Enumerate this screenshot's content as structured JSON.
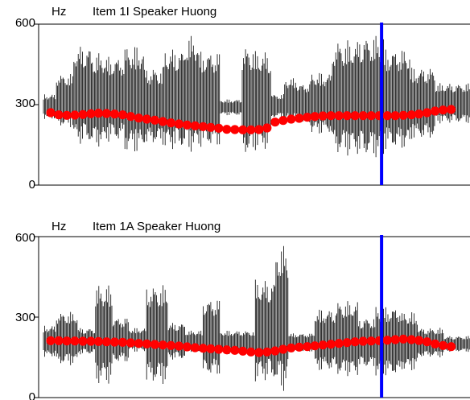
{
  "colors": {
    "waveform": "#000000",
    "pitch_points": "#ff0000",
    "cursor": "#0000ff",
    "axis": "#000000",
    "background": "#ffffff"
  },
  "chart_data": [
    {
      "type": "scatter",
      "title": "Item 1I Speaker Huong",
      "ylabel": "Hz",
      "ylim": [
        0,
        600
      ],
      "yticks": [
        "0",
        "300",
        "600"
      ],
      "grid": false,
      "legend": "none",
      "cursor_x_fraction": 0.795,
      "x": [
        0.0,
        0.019,
        0.038,
        0.057,
        0.076,
        0.095,
        0.113,
        0.132,
        0.151,
        0.17,
        0.189,
        0.208,
        0.227,
        0.246,
        0.265,
        0.284,
        0.303,
        0.322,
        0.341,
        0.36,
        0.378,
        0.397,
        0.416,
        0.435,
        0.454,
        0.473,
        0.492,
        0.511,
        0.53,
        0.549,
        0.568,
        0.587,
        0.606,
        0.624,
        0.643,
        0.662,
        0.681,
        0.7,
        0.719,
        0.738,
        0.757,
        0.776,
        0.795,
        0.814,
        0.833,
        0.852,
        0.87,
        0.889,
        0.908,
        0.927,
        0.946
      ],
      "pitch_hz": [
        270,
        262,
        260,
        261,
        263,
        266,
        268,
        267,
        265,
        262,
        256,
        250,
        246,
        242,
        237,
        232,
        228,
        224,
        221,
        218,
        215,
        212,
        208,
        207,
        206,
        206,
        207,
        213,
        235,
        241,
        246,
        249,
        253,
        256,
        258,
        259,
        259,
        259,
        259,
        259,
        259,
        259,
        259,
        259,
        260,
        262,
        265,
        270,
        276,
        280,
        282
      ],
      "waveform_envelope": [
        {
          "from": 0.0,
          "to": 0.04,
          "up": 340,
          "down": 245
        },
        {
          "from": 0.04,
          "to": 0.08,
          "up": 415,
          "down": 215
        },
        {
          "from": 0.08,
          "to": 0.12,
          "up": 520,
          "down": 150
        },
        {
          "from": 0.12,
          "to": 0.155,
          "up": 495,
          "down": 140
        },
        {
          "from": 0.155,
          "to": 0.2,
          "up": 480,
          "down": 160
        },
        {
          "from": 0.2,
          "to": 0.245,
          "up": 520,
          "down": 120
        },
        {
          "from": 0.245,
          "to": 0.29,
          "up": 440,
          "down": 150
        },
        {
          "from": 0.29,
          "to": 0.34,
          "up": 510,
          "down": 130
        },
        {
          "from": 0.34,
          "to": 0.37,
          "up": 560,
          "down": 120
        },
        {
          "from": 0.37,
          "to": 0.42,
          "up": 500,
          "down": 140
        },
        {
          "from": 0.42,
          "to": 0.47,
          "up": 320,
          "down": 260
        },
        {
          "from": 0.47,
          "to": 0.5,
          "up": 520,
          "down": 110
        },
        {
          "from": 0.5,
          "to": 0.54,
          "up": 500,
          "down": 130
        },
        {
          "from": 0.54,
          "to": 0.57,
          "up": 340,
          "down": 250
        },
        {
          "from": 0.57,
          "to": 0.6,
          "up": 400,
          "down": 230
        },
        {
          "from": 0.6,
          "to": 0.63,
          "up": 380,
          "down": 230
        },
        {
          "from": 0.63,
          "to": 0.68,
          "up": 420,
          "down": 190
        },
        {
          "from": 0.68,
          "to": 0.74,
          "up": 540,
          "down": 110
        },
        {
          "from": 0.74,
          "to": 0.8,
          "up": 560,
          "down": 100
        },
        {
          "from": 0.8,
          "to": 0.86,
          "up": 510,
          "down": 130
        },
        {
          "from": 0.86,
          "to": 0.92,
          "up": 440,
          "down": 170
        },
        {
          "from": 0.92,
          "to": 1.0,
          "up": 380,
          "down": 230
        }
      ]
    },
    {
      "type": "scatter",
      "title": "Item 1A Speaker Huong",
      "ylabel": "Hz",
      "ylim": [
        0,
        600
      ],
      "yticks": [
        "0",
        "300",
        "600"
      ],
      "grid": false,
      "legend": "none",
      "cursor_x_fraction": 0.795,
      "x": [
        0.0,
        0.019,
        0.038,
        0.057,
        0.076,
        0.095,
        0.113,
        0.132,
        0.151,
        0.17,
        0.189,
        0.208,
        0.227,
        0.246,
        0.265,
        0.284,
        0.303,
        0.322,
        0.341,
        0.36,
        0.378,
        0.397,
        0.416,
        0.435,
        0.454,
        0.473,
        0.492,
        0.511,
        0.53,
        0.549,
        0.568,
        0.587,
        0.606,
        0.624,
        0.643,
        0.662,
        0.681,
        0.7,
        0.719,
        0.738,
        0.757,
        0.776,
        0.795,
        0.814,
        0.833,
        0.852,
        0.87,
        0.889,
        0.908,
        0.927,
        0.946
      ],
      "pitch_hz": [
        212,
        212,
        211,
        211,
        210,
        210,
        209,
        208,
        207,
        206,
        204,
        202,
        200,
        198,
        196,
        194,
        192,
        189,
        186,
        184,
        182,
        180,
        178,
        176,
        173,
        170,
        168,
        170,
        174,
        180,
        185,
        188,
        190,
        193,
        196,
        199,
        202,
        205,
        208,
        210,
        211,
        212,
        214,
        216,
        218,
        216,
        213,
        208,
        200,
        194,
        190
      ],
      "waveform_envelope": [
        {
          "from": 0.0,
          "to": 0.04,
          "up": 270,
          "down": 150
        },
        {
          "from": 0.04,
          "to": 0.09,
          "up": 320,
          "down": 120
        },
        {
          "from": 0.09,
          "to": 0.13,
          "up": 260,
          "down": 160
        },
        {
          "from": 0.13,
          "to": 0.17,
          "up": 420,
          "down": 50
        },
        {
          "from": 0.17,
          "to": 0.21,
          "up": 300,
          "down": 130
        },
        {
          "from": 0.21,
          "to": 0.25,
          "up": 260,
          "down": 170
        },
        {
          "from": 0.25,
          "to": 0.3,
          "up": 420,
          "down": 50
        },
        {
          "from": 0.3,
          "to": 0.34,
          "up": 280,
          "down": 140
        },
        {
          "from": 0.34,
          "to": 0.38,
          "up": 250,
          "down": 170
        },
        {
          "from": 0.38,
          "to": 0.42,
          "up": 370,
          "down": 80
        },
        {
          "from": 0.42,
          "to": 0.5,
          "up": 250,
          "down": 160
        },
        {
          "from": 0.5,
          "to": 0.55,
          "up": 440,
          "down": 60
        },
        {
          "from": 0.55,
          "to": 0.58,
          "up": 570,
          "down": 20
        },
        {
          "from": 0.58,
          "to": 0.64,
          "up": 240,
          "down": 170
        },
        {
          "from": 0.64,
          "to": 0.69,
          "up": 330,
          "down": 100
        },
        {
          "from": 0.69,
          "to": 0.74,
          "up": 360,
          "down": 80
        },
        {
          "from": 0.74,
          "to": 0.78,
          "up": 300,
          "down": 110
        },
        {
          "from": 0.78,
          "to": 0.84,
          "up": 340,
          "down": 80
        },
        {
          "from": 0.84,
          "to": 0.88,
          "up": 320,
          "down": 100
        },
        {
          "from": 0.88,
          "to": 0.94,
          "up": 260,
          "down": 150
        },
        {
          "from": 0.94,
          "to": 1.0,
          "up": 230,
          "down": 170
        }
      ]
    }
  ]
}
